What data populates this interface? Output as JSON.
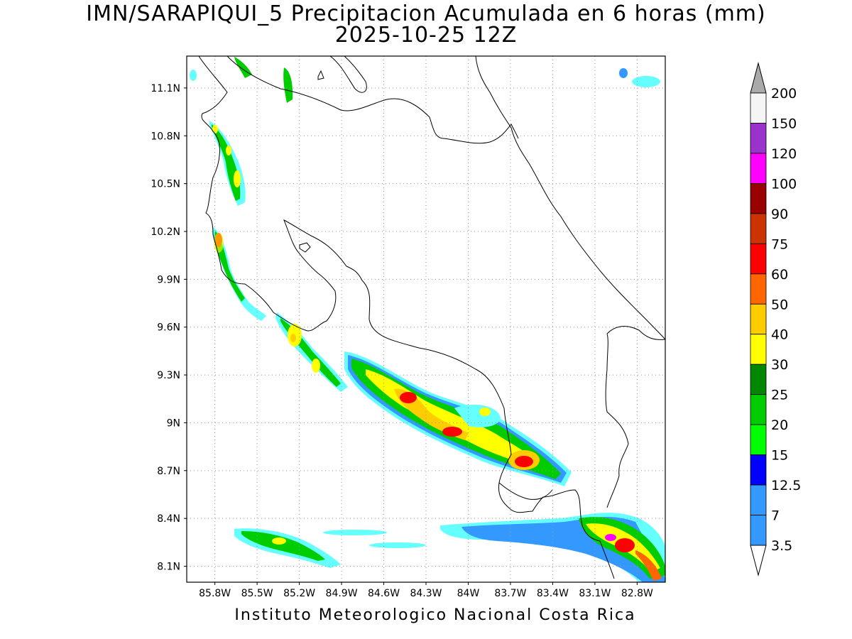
{
  "title": {
    "line1": "IMN/SARAPIQUI_5 Precipitacion Acumulada en 6 horas (mm)",
    "line2": "2025-10-25 12Z"
  },
  "footer": "Instituto Meteorologico Nacional Costa Rica",
  "map": {
    "lon_range": [
      -86.0,
      -82.6
    ],
    "lat_range": [
      8.0,
      11.3
    ],
    "lon_ticks": [
      {
        "value": -85.8,
        "label": "85.8W"
      },
      {
        "value": -85.5,
        "label": "85.5W"
      },
      {
        "value": -85.2,
        "label": "85.2W"
      },
      {
        "value": -84.9,
        "label": "84.9W"
      },
      {
        "value": -84.6,
        "label": "84.6W"
      },
      {
        "value": -84.3,
        "label": "84.3W"
      },
      {
        "value": -84.0,
        "label": "84W"
      },
      {
        "value": -83.7,
        "label": "83.7W"
      },
      {
        "value": -83.4,
        "label": "83.4W"
      },
      {
        "value": -83.1,
        "label": "83.1W"
      },
      {
        "value": -82.8,
        "label": "82.8W"
      }
    ],
    "lat_ticks": [
      {
        "value": 8.1,
        "label": "8.1N"
      },
      {
        "value": 8.4,
        "label": "8.4N"
      },
      {
        "value": 8.7,
        "label": "8.7N"
      },
      {
        "value": 9.0,
        "label": "9N"
      },
      {
        "value": 9.3,
        "label": "9.3N"
      },
      {
        "value": 9.6,
        "label": "9.6N"
      },
      {
        "value": 9.9,
        "label": "9.9N"
      },
      {
        "value": 10.2,
        "label": "10.2N"
      },
      {
        "value": 10.5,
        "label": "10.5N"
      },
      {
        "value": 10.8,
        "label": "10.8N"
      },
      {
        "value": 11.1,
        "label": "11.1N"
      }
    ],
    "grid": "dotted"
  },
  "colorbar": {
    "levels": [
      {
        "label": "3.5",
        "color": "#66ffff"
      },
      {
        "label": "7",
        "color": "#3399ff"
      },
      {
        "label": "12.5",
        "color": "#3399ff"
      },
      {
        "label": "15",
        "color": "#0000ff"
      },
      {
        "label": "20",
        "color": "#00ff00"
      },
      {
        "label": "25",
        "color": "#00cc00"
      },
      {
        "label": "30",
        "color": "#008800"
      },
      {
        "label": "40",
        "color": "#ffff00"
      },
      {
        "label": "50",
        "color": "#ffcc00"
      },
      {
        "label": "60",
        "color": "#ff6600"
      },
      {
        "label": "75",
        "color": "#ff0000"
      },
      {
        "label": "90",
        "color": "#cc3300"
      },
      {
        "label": "100",
        "color": "#990000"
      },
      {
        "label": "120",
        "color": "#ff00ff"
      },
      {
        "label": "150",
        "color": "#9933cc"
      },
      {
        "label": "200",
        "color": "#f5f5f5"
      }
    ],
    "under_color": "#ffffff",
    "over_color": "#aaaaaa"
  }
}
